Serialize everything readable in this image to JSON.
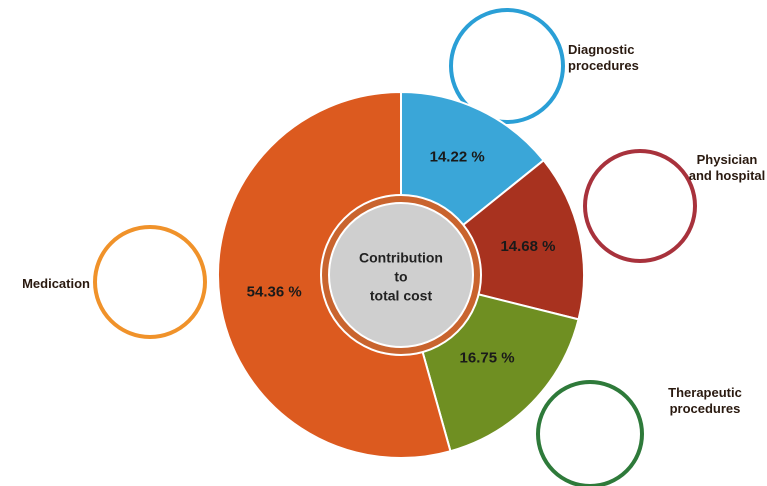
{
  "chart_data": {
    "type": "pie",
    "center_label": [
      "Contribution",
      "to",
      "total cost"
    ],
    "categories": [
      "Diagnostic procedures",
      "Physician and hospital",
      "Therapeutic procedures",
      "Medication"
    ],
    "values": [
      14.22,
      14.68,
      16.75,
      54.36
    ],
    "value_labels": [
      "14.22 %",
      "14.68 %",
      "16.75 %",
      "54.36 %"
    ],
    "colors": [
      "#3aa6d8",
      "#a8321f",
      "#6f8f22",
      "#dc5a1f"
    ]
  }
}
